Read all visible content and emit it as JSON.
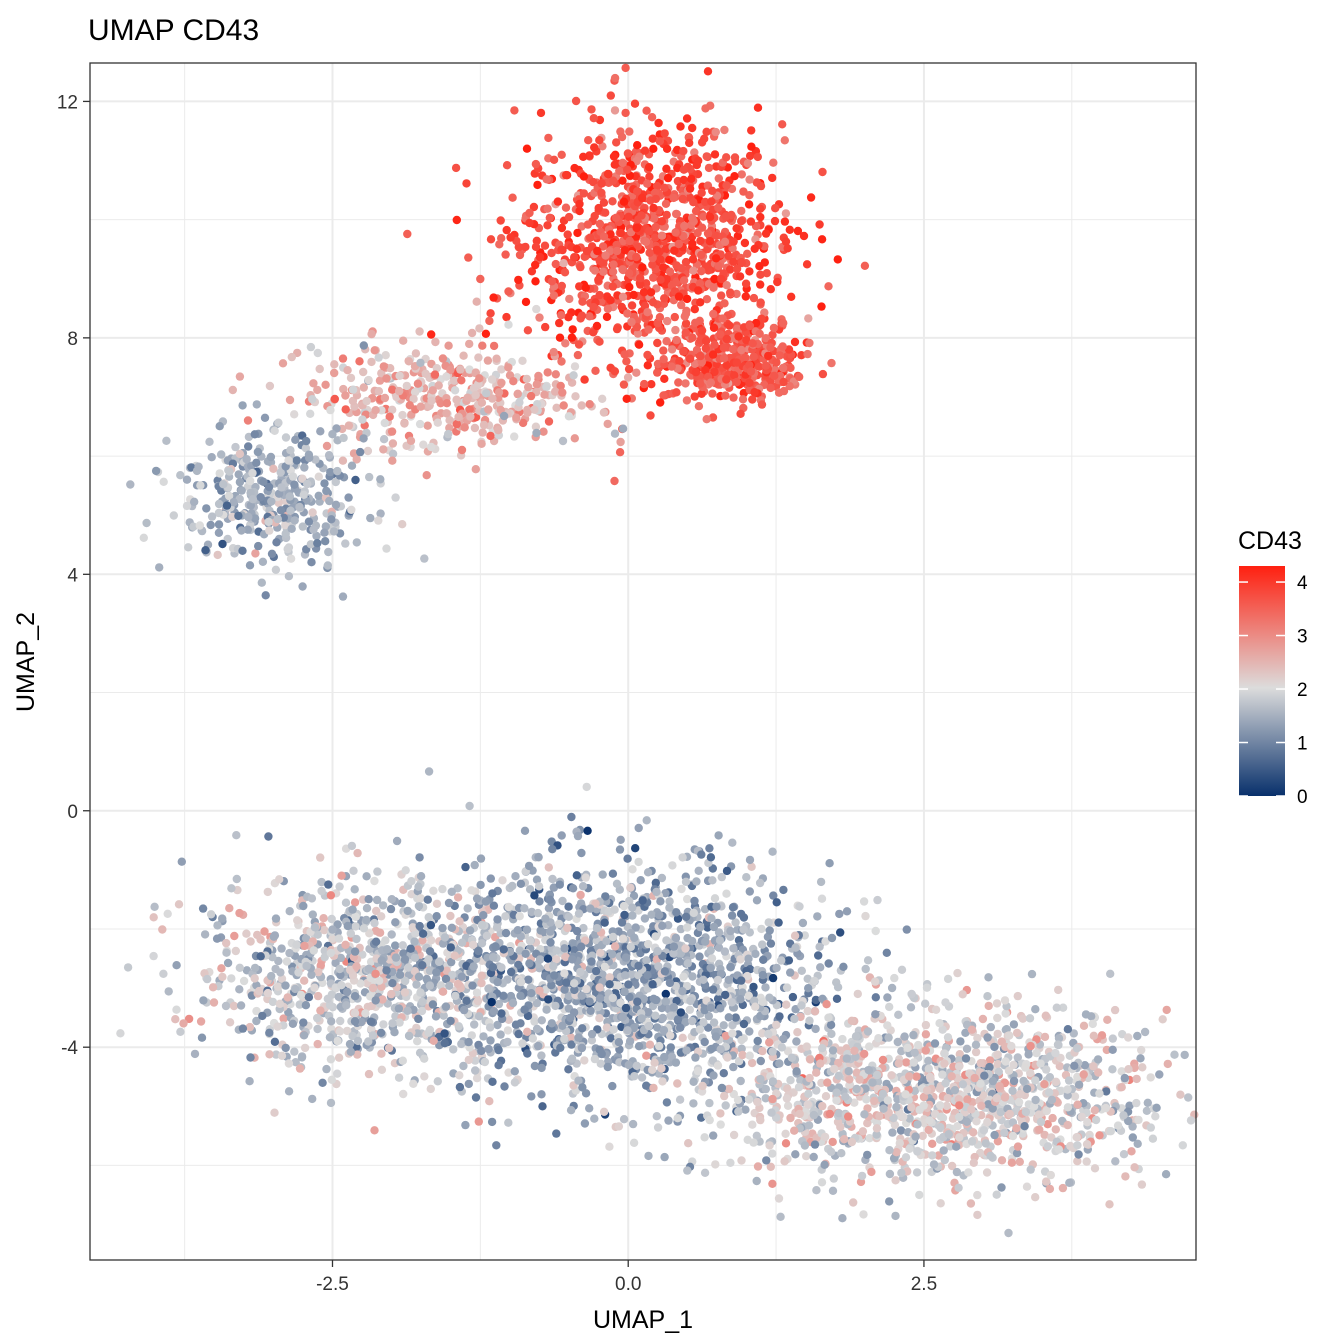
{
  "chart_data": {
    "type": "scatter",
    "title": "UMAP CD43",
    "xlabel": "UMAP_1",
    "ylabel": "UMAP_2",
    "xlim": [
      -4.55,
      4.8
    ],
    "ylim": [
      -7.6,
      12.65
    ],
    "x_ticks": [
      -2.5,
      0.0,
      2.5
    ],
    "x_tick_labels": [
      "-2.5",
      "0.0",
      "2.5"
    ],
    "y_ticks": [
      -4,
      0,
      4,
      8,
      12
    ],
    "y_tick_labels": [
      "-4",
      "0",
      "4",
      "8",
      "12"
    ],
    "grid": true,
    "legend": {
      "title": "CD43",
      "position": "right",
      "range": [
        0,
        4.3
      ],
      "ticks": [
        0,
        1,
        2,
        3,
        4
      ],
      "tick_labels": [
        "0",
        "1",
        "2",
        "3",
        "4"
      ],
      "colors": {
        "low": "#08306b",
        "mid": "#dcdcdc",
        "high": "#ff2010"
      }
    },
    "clusters": [
      {
        "name": "upper-red",
        "center": [
          0.2,
          9.6
        ],
        "spread": [
          0.55,
          1.0
        ],
        "n": 1100,
        "value_mean": 3.7,
        "value_sd": 0.35
      },
      {
        "name": "upper-red-right-lobe",
        "center": [
          0.9,
          7.6
        ],
        "spread": [
          0.3,
          0.35
        ],
        "n": 350,
        "value_mean": 3.6,
        "value_sd": 0.3
      },
      {
        "name": "upper-left-bridge",
        "center": [
          -1.5,
          7.0
        ],
        "spread": [
          0.6,
          0.45
        ],
        "n": 420,
        "value_mean": 2.5,
        "value_sd": 0.45
      },
      {
        "name": "upper-left-tail",
        "center": [
          -3.0,
          5.3
        ],
        "spread": [
          0.4,
          0.6
        ],
        "n": 380,
        "value_mean": 1.5,
        "value_sd": 0.4
      },
      {
        "name": "lower-left",
        "center": [
          -2.2,
          -2.7
        ],
        "spread": [
          0.75,
          0.8
        ],
        "n": 900,
        "value_mean": 1.8,
        "value_sd": 0.45
      },
      {
        "name": "lower-center",
        "center": [
          0.0,
          -2.9
        ],
        "spread": [
          0.85,
          1.0
        ],
        "n": 1500,
        "value_mean": 1.4,
        "value_sd": 0.45
      },
      {
        "name": "lower-right",
        "center": [
          2.6,
          -4.8
        ],
        "spread": [
          1.0,
          0.75
        ],
        "n": 1300,
        "value_mean": 2.0,
        "value_sd": 0.4
      }
    ]
  }
}
